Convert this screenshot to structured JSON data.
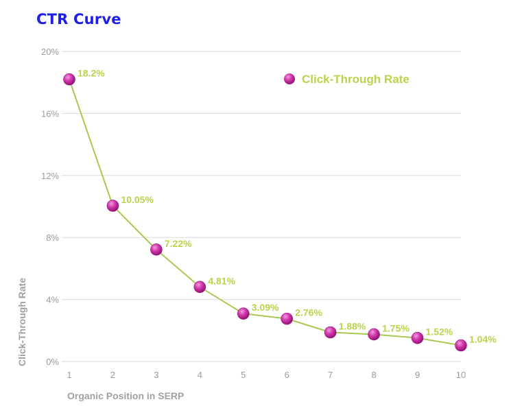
{
  "chart_data": {
    "type": "line",
    "title": "CTR Curve",
    "xlabel": "Organic Position in SERP",
    "ylabel": "Click-Through Rate",
    "x": [
      1,
      2,
      3,
      4,
      5,
      6,
      7,
      8,
      9,
      10
    ],
    "x_tick_labels": [
      "1",
      "2",
      "3",
      "4",
      "5",
      "6",
      "7",
      "8",
      "9",
      "10"
    ],
    "y_ticks": [
      0,
      4,
      8,
      12,
      16,
      20
    ],
    "y_tick_labels": [
      "0%",
      "4%",
      "8%",
      "12%",
      "16%",
      "20%"
    ],
    "ylim": [
      0,
      20
    ],
    "xlim": [
      1,
      10
    ],
    "grid": true,
    "legend_position": "top-right",
    "series": [
      {
        "name": "Click-Through Rate",
        "values": [
          18.2,
          10.05,
          7.22,
          4.81,
          3.09,
          2.76,
          1.88,
          1.75,
          1.52,
          1.04
        ],
        "labels": [
          "18.2%",
          "10.05%",
          "7.22%",
          "4.81%",
          "3.09%",
          "2.76%",
          "1.88%",
          "1.75%",
          "1.52%",
          "1.04%"
        ],
        "line_color": "#a8c850",
        "marker_color": "#c0249a",
        "label_color": "#b9d34a"
      }
    ],
    "title_color": "#1f1fe6",
    "grid_color": "#d9d9d9",
    "axis_text_color": "#9a9a9a"
  }
}
